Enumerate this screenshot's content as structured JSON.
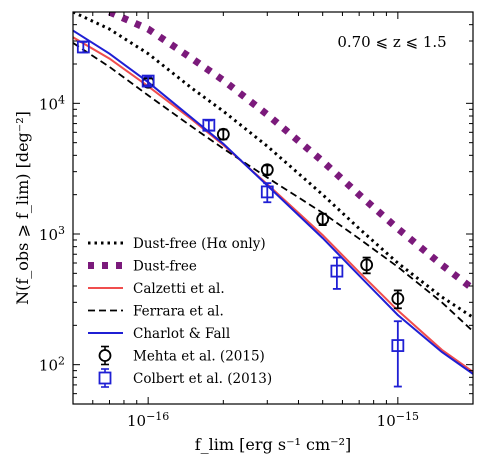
{
  "chart_data": {
    "type": "line",
    "xlabel": "f_lim [erg s⁻¹ cm⁻²]",
    "ylabel": "N(f_obs ⩾ f_lim) [deg⁻²]",
    "xscale": "log",
    "yscale": "log",
    "xlim": [
      5e-17,
      2e-15
    ],
    "ylim": [
      50,
      50000
    ],
    "x_ticks": [
      {
        "value": 1e-16,
        "mantissa": "10",
        "exponent": "−16"
      },
      {
        "value": 1e-15,
        "mantissa": "10",
        "exponent": "−15"
      }
    ],
    "y_ticks": [
      {
        "value": 100,
        "mantissa": "10",
        "exponent": "2"
      },
      {
        "value": 1000,
        "mantissa": "10",
        "exponent": "3"
      },
      {
        "value": 10000,
        "mantissa": "10",
        "exponent": "4"
      }
    ],
    "annotation": "0.70 ⩽ z ⩽ 1.5",
    "legend_position": "lower-left",
    "series": [
      {
        "name": "Dust-free (Hα only)",
        "style": "dotted",
        "color": "#000000",
        "x": [
          5e-17,
          7e-17,
          1e-16,
          1.5e-16,
          2e-16,
          3e-16,
          5e-16,
          7e-16,
          1e-15,
          1.5e-15,
          2e-15
        ],
        "y": [
          50000,
          37000,
          24000,
          13000,
          8700,
          4700,
          2000,
          1100,
          600,
          330,
          230
        ]
      },
      {
        "name": "Dust-free",
        "style": "thick-dotted",
        "color": "#7b1a7b",
        "x": [
          7e-17,
          1e-16,
          1.5e-16,
          2e-16,
          3e-16,
          5e-16,
          7e-16,
          1e-15,
          1.5e-15,
          2e-15
        ],
        "y": [
          50000,
          37000,
          22000,
          15000,
          8200,
          3600,
          2000,
          1100,
          580,
          380
        ]
      },
      {
        "name": "Calzetti et al.",
        "style": "solid",
        "color": "#f04d4d",
        "x": [
          5e-17,
          7e-17,
          1e-16,
          1.5e-16,
          2e-16,
          3e-16,
          5e-16,
          7e-16,
          1e-15,
          1.5e-15,
          2e-15
        ],
        "y": [
          32000,
          22000,
          13500,
          7500,
          4800,
          2400,
          980,
          510,
          260,
          130,
          88
        ]
      },
      {
        "name": "Ferrara et al.",
        "style": "dashed",
        "color": "#000000",
        "x": [
          5e-17,
          7e-17,
          1e-16,
          1.5e-16,
          2e-16,
          3e-16,
          5e-16,
          7e-16,
          1e-15,
          1.5e-15,
          2e-15
        ],
        "y": [
          29000,
          19000,
          11500,
          6600,
          4500,
          2700,
          1450,
          920,
          560,
          300,
          180
        ]
      },
      {
        "name": "Charlot & Fall",
        "style": "solid",
        "color": "#1f1fd4",
        "x": [
          5e-17,
          7e-17,
          1e-16,
          1.5e-16,
          2e-16,
          3e-16,
          5e-16,
          7e-16,
          1e-15,
          1.5e-15,
          2e-15
        ],
        "y": [
          36000,
          24000,
          14500,
          7700,
          4900,
          2350,
          930,
          480,
          240,
          125,
          85
        ]
      }
    ],
    "points": [
      {
        "name": "Mehta et al. (2015)",
        "marker": "circle",
        "color": "#000000",
        "x": [
          1e-16,
          2e-16,
          3e-16,
          5e-16,
          7.5e-16,
          1e-15
        ],
        "y": [
          14500,
          5800,
          3100,
          1300,
          580,
          320
        ],
        "ylow": [
          13500,
          5300,
          2850,
          1170,
          500,
          270
        ],
        "yhigh": [
          15500,
          6300,
          3350,
          1430,
          660,
          370
        ]
      },
      {
        "name": "Colbert et al. (2013)",
        "marker": "square",
        "color": "#1f1fd4",
        "x": [
          5.5e-17,
          1e-16,
          1.75e-16,
          3e-16,
          5.7e-16,
          1e-15
        ],
        "y": [
          27000,
          14800,
          6800,
          2100,
          520,
          140
        ],
        "ylow": [
          24500,
          13700,
          6200,
          1750,
          380,
          68
        ],
        "yhigh": [
          29500,
          16000,
          7400,
          2450,
          660,
          215
        ]
      }
    ]
  }
}
